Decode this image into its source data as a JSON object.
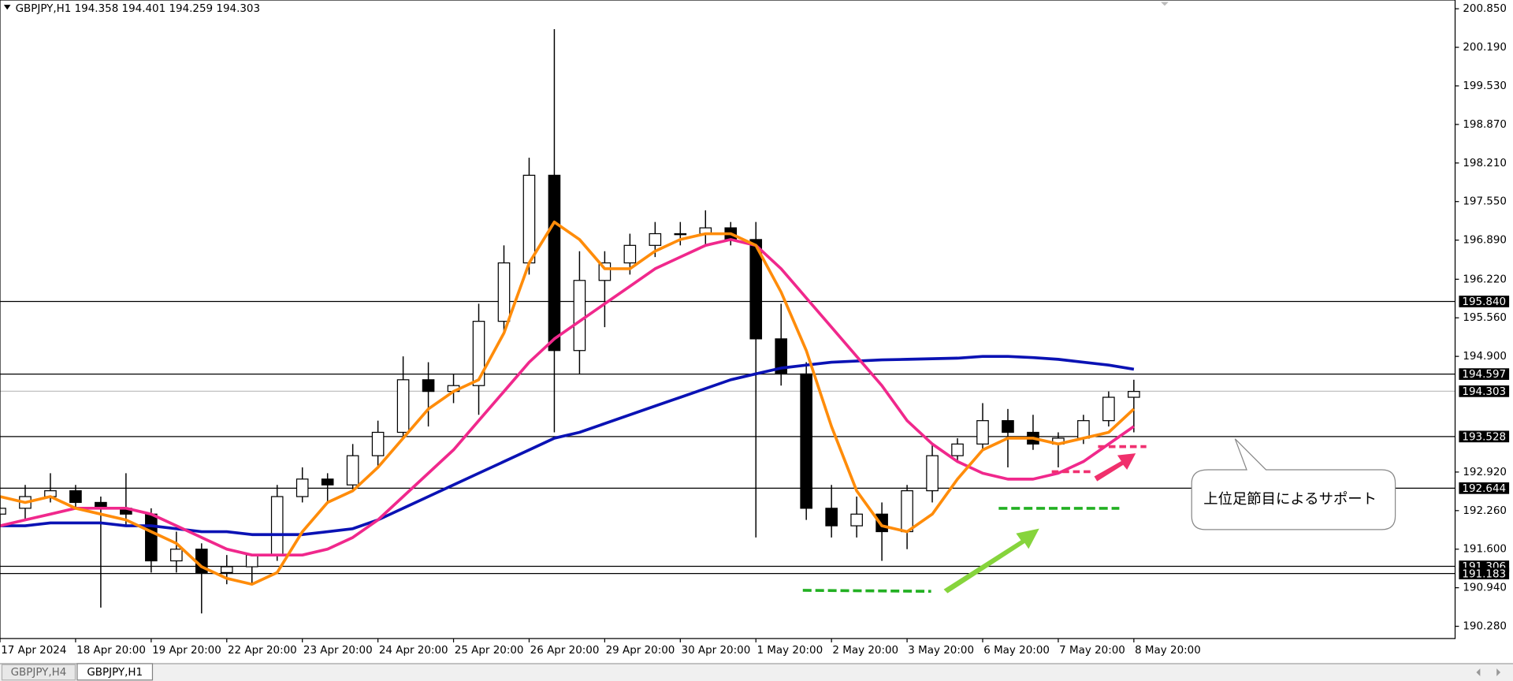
{
  "chart_data": {
    "type": "candlestick",
    "title": "GBPJPY,H1  194.358 194.401 194.259 194.303",
    "x": [
      0,
      8,
      16,
      24,
      32,
      40,
      48,
      56,
      64,
      72,
      80,
      88,
      96,
      104,
      112,
      120,
      128,
      136,
      144,
      152,
      160,
      168,
      176,
      184,
      192,
      200,
      208,
      216,
      224,
      232,
      240,
      248,
      256,
      264,
      272,
      280,
      288,
      296,
      304,
      312,
      320,
      328,
      336,
      344,
      352,
      360
    ],
    "open": [
      192.2,
      192.3,
      192.5,
      192.6,
      192.4,
      192.3,
      192.2,
      191.4,
      191.6,
      191.2,
      191.3,
      191.5,
      192.5,
      192.8,
      192.7,
      193.2,
      193.6,
      194.5,
      194.3,
      194.4,
      195.5,
      196.5,
      198.0,
      195.0,
      196.2,
      196.5,
      196.8,
      197.0,
      197.0,
      197.1,
      196.9,
      195.2,
      194.6,
      192.3,
      192.0,
      192.2,
      191.9,
      192.6,
      193.2,
      193.4,
      193.8,
      193.6,
      193.4,
      193.5,
      193.8,
      194.2
    ],
    "high": [
      192.5,
      192.7,
      192.9,
      192.7,
      192.5,
      192.9,
      192.3,
      191.9,
      191.7,
      191.5,
      191.5,
      192.7,
      193.0,
      192.9,
      193.4,
      193.8,
      194.9,
      194.8,
      194.6,
      195.8,
      196.8,
      198.3,
      200.5,
      196.7,
      196.7,
      197.0,
      197.2,
      197.2,
      197.4,
      197.2,
      197.2,
      195.8,
      194.8,
      192.7,
      192.5,
      192.4,
      192.7,
      193.4,
      193.5,
      194.1,
      194.0,
      193.9,
      193.6,
      193.9,
      194.3,
      194.5
    ],
    "low": [
      192.0,
      192.1,
      192.4,
      192.3,
      190.6,
      192.0,
      191.2,
      191.2,
      190.5,
      191.0,
      191.0,
      191.4,
      192.4,
      192.4,
      192.6,
      193.0,
      193.5,
      193.7,
      194.1,
      193.9,
      195.3,
      196.3,
      193.6,
      194.6,
      195.4,
      196.3,
      196.6,
      196.8,
      196.8,
      196.8,
      191.8,
      194.4,
      192.1,
      191.8,
      191.8,
      191.4,
      191.6,
      192.4,
      193.1,
      193.3,
      193.0,
      193.3,
      193.0,
      193.4,
      193.7,
      193.6
    ],
    "close": [
      192.3,
      192.5,
      192.6,
      192.4,
      192.3,
      192.2,
      191.4,
      191.6,
      191.2,
      191.3,
      191.5,
      192.5,
      192.8,
      192.7,
      193.2,
      193.6,
      194.5,
      194.3,
      194.4,
      195.5,
      196.5,
      198.0,
      195.0,
      196.2,
      196.5,
      196.8,
      197.0,
      197.0,
      197.1,
      196.9,
      195.2,
      194.6,
      192.3,
      192.0,
      192.2,
      191.9,
      192.6,
      193.2,
      193.4,
      193.8,
      193.6,
      193.4,
      193.5,
      193.8,
      194.2,
      194.3
    ],
    "series": [
      {
        "color": "#0a12b4",
        "values": [
          192.0,
          192.0,
          192.05,
          192.05,
          192.05,
          192.0,
          192.0,
          191.95,
          191.9,
          191.9,
          191.85,
          191.85,
          191.85,
          191.9,
          191.95,
          192.1,
          192.3,
          192.5,
          192.7,
          192.9,
          193.1,
          193.3,
          193.5,
          193.6,
          193.75,
          193.9,
          194.05,
          194.2,
          194.35,
          194.5,
          194.6,
          194.7,
          194.75,
          194.8,
          194.82,
          194.84,
          194.85,
          194.86,
          194.87,
          194.9,
          194.9,
          194.88,
          194.85,
          194.8,
          194.75,
          194.68
        ]
      },
      {
        "color": "#f0288c",
        "values": [
          192.0,
          192.1,
          192.2,
          192.3,
          192.3,
          192.3,
          192.2,
          192.0,
          191.8,
          191.6,
          191.5,
          191.5,
          191.5,
          191.6,
          191.8,
          192.1,
          192.5,
          192.9,
          193.3,
          193.8,
          194.3,
          194.8,
          195.2,
          195.5,
          195.8,
          196.1,
          196.4,
          196.6,
          196.8,
          196.9,
          196.8,
          196.4,
          195.9,
          195.4,
          194.9,
          194.4,
          193.8,
          193.4,
          193.1,
          192.9,
          192.8,
          192.8,
          192.9,
          193.1,
          193.4,
          193.7
        ]
      },
      {
        "color": "#ff8c0a",
        "values": [
          192.5,
          192.4,
          192.5,
          192.3,
          192.2,
          192.1,
          191.9,
          191.7,
          191.3,
          191.1,
          191.0,
          191.2,
          191.9,
          192.4,
          192.6,
          193.0,
          193.5,
          194.0,
          194.3,
          194.5,
          195.3,
          196.5,
          197.2,
          196.9,
          196.4,
          196.4,
          196.7,
          196.9,
          197.0,
          197.0,
          196.8,
          196.0,
          195.0,
          193.7,
          192.6,
          192.0,
          191.9,
          192.2,
          192.8,
          193.3,
          193.5,
          193.5,
          193.4,
          193.5,
          193.6,
          194.0
        ]
      }
    ],
    "xlim": [
      0,
      462
    ],
    "ylim": [
      190.07,
      201.0
    ],
    "xticks": [
      {
        "value": 0,
        "label": "17 Apr 2024"
      },
      {
        "value": 24,
        "label": "18 Apr 20:00"
      },
      {
        "value": 48,
        "label": "19 Apr 20:00"
      },
      {
        "value": 72,
        "label": "22 Apr 20:00"
      },
      {
        "value": 96,
        "label": "23 Apr 20:00"
      },
      {
        "value": 120,
        "label": "24 Apr 20:00"
      },
      {
        "value": 144,
        "label": "25 Apr 20:00"
      },
      {
        "value": 168,
        "label": "26 Apr 20:00"
      },
      {
        "value": 192,
        "label": "29 Apr 20:00"
      },
      {
        "value": 216,
        "label": "30 Apr 20:00"
      },
      {
        "value": 240,
        "label": "1 May 20:00"
      },
      {
        "value": 264,
        "label": "2 May 20:00"
      },
      {
        "value": 288,
        "label": "3 May 20:00"
      },
      {
        "value": 312,
        "label": "6 May 20:00"
      },
      {
        "value": 336,
        "label": "7 May 20:00"
      },
      {
        "value": 360,
        "label": "8 May 20:00"
      }
    ],
    "yticks": [
      {
        "value": 200.85,
        "label": "200.850"
      },
      {
        "value": 200.19,
        "label": "200.190"
      },
      {
        "value": 199.53,
        "label": "199.530"
      },
      {
        "value": 198.87,
        "label": "198.870"
      },
      {
        "value": 198.21,
        "label": "198.210"
      },
      {
        "value": 197.55,
        "label": "197.550"
      },
      {
        "value": 196.89,
        "label": "196.890"
      },
      {
        "value": 196.22,
        "label": "196.220"
      },
      {
        "value": 195.56,
        "label": "195.560"
      },
      {
        "value": 194.9,
        "label": "194.900"
      },
      {
        "value": 192.92,
        "label": "192.920"
      },
      {
        "value": 192.26,
        "label": "192.260"
      },
      {
        "value": 191.6,
        "label": "191.600"
      },
      {
        "value": 190.94,
        "label": "190.940"
      },
      {
        "value": 190.28,
        "label": "190.280"
      }
    ],
    "hlines": [
      {
        "value": 195.84,
        "label": "195.840",
        "color": "#000000"
      },
      {
        "value": 194.597,
        "label": "194.597",
        "color": "#000000"
      },
      {
        "value": 194.303,
        "label": "194.303",
        "color": "#c0c0c0"
      },
      {
        "value": 193.528,
        "label": "193.528",
        "color": "#000000"
      },
      {
        "value": 192.644,
        "label": "192.644",
        "color": "#000000"
      },
      {
        "value": 191.306,
        "label": "191.306",
        "color": "#000000"
      },
      {
        "value": 191.183,
        "label": "191.183",
        "color": "#000000"
      }
    ],
    "annotation": "上位足節目によるサポート",
    "tabs": [
      "GBPJPY,H4",
      "GBPJPY,H1"
    ]
  }
}
